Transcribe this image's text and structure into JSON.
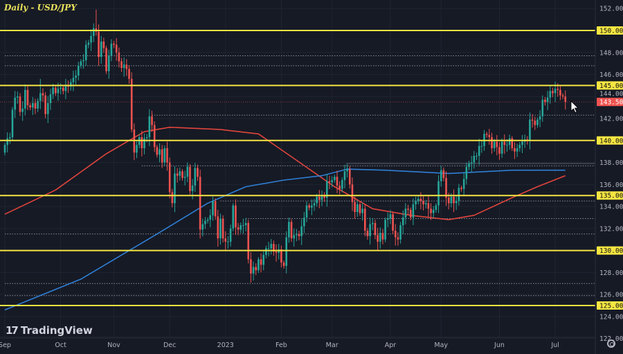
{
  "chart_data": {
    "type": "candlestick",
    "title": "Daily - USD/JPY",
    "symbol": "USD/JPY",
    "timeframe": "Daily",
    "ylim": [
      121.5,
      153
    ],
    "y_ticks": [
      "152.000",
      "150.000",
      "148.000",
      "146.000",
      "144.000",
      "142.000",
      "140.000",
      "138.000",
      "136.000",
      "134.000",
      "132.000",
      "130.000",
      "128.000",
      "126.000",
      "124.000",
      "122.000"
    ],
    "x_ticks": [
      {
        "label": "Sep",
        "index": 0
      },
      {
        "label": "Oct",
        "index": 22
      },
      {
        "label": "Nov",
        "index": 43
      },
      {
        "label": "Dec",
        "index": 65
      },
      {
        "label": "2023",
        "index": 87
      },
      {
        "label": "Feb",
        "index": 109
      },
      {
        "label": "Mar",
        "index": 129
      },
      {
        "label": "Apr",
        "index": 152
      },
      {
        "label": "May",
        "index": 172
      },
      {
        "label": "Jun",
        "index": 195
      },
      {
        "label": "Jul",
        "index": 217
      }
    ],
    "open_first": 138.9,
    "closes": [
      139.6,
      140.2,
      140.3,
      142.8,
      143.9,
      144.0,
      142.6,
      142.9,
      144.6,
      143.2,
      143.0,
      143.4,
      142.9,
      143.6,
      144.3,
      144.1,
      142.4,
      143.4,
      144.2,
      144.8,
      144.3,
      144.7,
      144.8,
      144.5,
      145.0,
      144.9,
      145.3,
      145.7,
      145.9,
      146.8,
      147.2,
      147.3,
      148.7,
      148.9,
      149.5,
      150.2,
      149.9,
      147.6,
      149.0,
      148.4,
      146.3,
      147.7,
      148.8,
      148.7,
      148.0,
      147.2,
      146.6,
      146.9,
      146.5,
      145.6,
      141.0,
      138.9,
      139.6,
      140.3,
      139.3,
      140.2,
      140.3,
      142.2,
      141.4,
      139.4,
      138.7,
      139.2,
      138.0,
      139.3,
      138.0,
      135.3,
      134.3,
      137.0,
      136.8,
      137.2,
      136.6,
      136.7,
      137.6,
      135.4,
      135.9,
      137.5,
      136.7,
      131.9,
      132.4,
      132.7,
      132.8,
      133.2,
      134.5,
      133.1,
      131.1,
      132.9,
      131.1,
      130.8,
      130.8,
      132.0,
      134.1,
      132.1,
      131.9,
      132.3,
      132.3,
      132.5,
      129.2,
      127.9,
      128.5,
      128.2,
      129.2,
      128.7,
      129.6,
      130.2,
      130.2,
      130.6,
      129.9,
      129.8,
      130.1,
      128.9,
      128.6,
      131.2,
      132.6,
      131.1,
      131.4,
      131.5,
      131.3,
      132.2,
      133.0,
      134.1,
      133.9,
      134.1,
      134.3,
      134.9,
      134.6,
      135.0,
      134.8,
      136.3,
      136.2,
      136.4,
      136.7,
      135.9,
      135.6,
      136.4,
      137.2,
      137.4,
      136.0,
      134.4,
      133.5,
      134.2,
      133.4,
      133.8,
      131.8,
      131.3,
      132.4,
      132.5,
      131.4,
      130.8,
      131.6,
      131.0,
      132.8,
      132.9,
      133.3,
      131.8,
      131.2,
      131.0,
      132.3,
      133.0,
      133.8,
      133.7,
      133.0,
      134.2,
      134.5,
      134.7,
      134.5,
      134.2,
      134.3,
      133.8,
      133.4,
      133.7,
      134.1,
      136.3,
      137.3,
      136.6,
      134.8,
      134.3,
      134.9,
      134.3,
      134.5,
      135.7,
      135.6,
      136.5,
      137.6,
      137.9,
      138.0,
      138.6,
      138.6,
      139.5,
      139.5,
      140.6,
      140.5,
      140.3,
      139.3,
      139.9,
      139.4,
      138.8,
      139.9,
      139.6,
      139.6,
      140.2,
      139.3,
      139.0,
      139.3,
      139.6,
      139.9,
      140.1,
      140.0,
      141.9,
      141.8,
      141.4,
      141.9,
      142.2,
      143.7,
      143.5,
      143.9,
      144.5,
      144.3,
      144.7,
      144.6,
      144.1,
      144.0,
      143.5
    ],
    "high_overrides": {
      "36": 151.9,
      "50": 146.2,
      "14": 145.6
    },
    "series": [
      {
        "name": "Moving average (red)",
        "color": "#e2453c",
        "points": [
          [
            0,
            133.3
          ],
          [
            20,
            135.5
          ],
          [
            40,
            138.8
          ],
          [
            55,
            140.8
          ],
          [
            65,
            141.2
          ],
          [
            85,
            141.0
          ],
          [
            100,
            140.6
          ],
          [
            115,
            138.2
          ],
          [
            130,
            135.8
          ],
          [
            145,
            133.8
          ],
          [
            160,
            133.2
          ],
          [
            175,
            132.8
          ],
          [
            185,
            133.2
          ],
          [
            200,
            134.8
          ],
          [
            210,
            135.8
          ],
          [
            221,
            136.8
          ]
        ]
      },
      {
        "name": "Moving average (blue)",
        "color": "#2f7fd6",
        "points": [
          [
            0,
            124.6
          ],
          [
            30,
            127.4
          ],
          [
            60,
            131.5
          ],
          [
            80,
            134.3
          ],
          [
            95,
            135.8
          ],
          [
            110,
            136.4
          ],
          [
            125,
            136.8
          ],
          [
            135,
            137.4
          ],
          [
            150,
            137.3
          ],
          [
            175,
            137.0
          ],
          [
            200,
            137.3
          ],
          [
            221,
            137.3
          ]
        ]
      }
    ],
    "horizontal_levels": [
      {
        "price": 150,
        "label": "150.000"
      },
      {
        "price": 145,
        "label": "145.000"
      },
      {
        "price": 140,
        "label": "140.000"
      },
      {
        "price": 135,
        "label": "135.000"
      },
      {
        "price": 130,
        "label": "130.000"
      },
      {
        "price": 125,
        "label": "125.000"
      }
    ],
    "dotted_levels": [
      {
        "price": 147.7,
        "from_index": 0
      },
      {
        "price": 146.8,
        "from_index": 0
      },
      {
        "price": 142.3,
        "from_index": 58
      },
      {
        "price": 137.7,
        "from_index": 54
      },
      {
        "price": 134.5,
        "from_index": 85
      },
      {
        "price": 132.9,
        "from_index": 95
      },
      {
        "price": 131.5,
        "from_index": 0
      },
      {
        "price": 127.0,
        "from_index": 0
      },
      {
        "price": 125.9,
        "from_index": 0
      }
    ],
    "last_price": {
      "value": 143.503,
      "label": "143.503"
    },
    "colors": {
      "up": "#26a69a",
      "down": "#ef5350",
      "level": "#f5e642",
      "background": "#161a25"
    }
  },
  "branding": {
    "logo_text": "TradingView",
    "logo_mark": "17"
  }
}
